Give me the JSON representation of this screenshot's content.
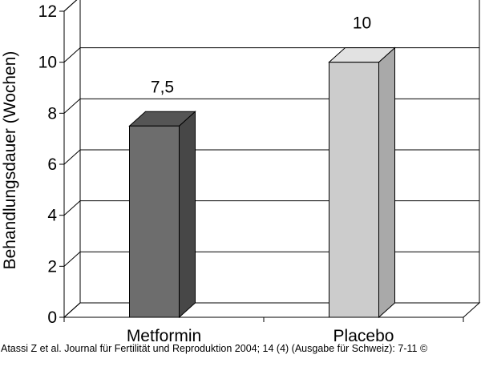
{
  "chart_data": {
    "type": "bar",
    "categories": [
      "Metformin",
      "Placebo"
    ],
    "values": [
      7.5,
      10
    ],
    "value_labels": [
      "7,5",
      "10"
    ],
    "ylabel": "Behandlungsdauer (Wochen)",
    "xlabel": "",
    "title": "",
    "ylim": [
      0,
      12
    ],
    "yticks": [
      0,
      2,
      4,
      6,
      8,
      10,
      12
    ],
    "grid": true,
    "legend": "none",
    "style": "3d",
    "colors": {
      "Metformin": "#6d6d6d",
      "Placebo": "#cccccc",
      "gridline": "#000000",
      "background": "#ffffff"
    }
  },
  "caption": "Atassi Z et al. Journal für Fertilität und Reproduktion 2004; 14 (4) (Ausgabe für Schweiz): 7-11 ©"
}
